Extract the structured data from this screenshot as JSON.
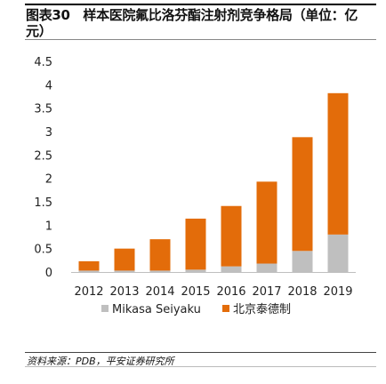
{
  "title": "图表30　样本医院氟比洛芬酯注射剂竞争格局（单位：亿元）",
  "source": "资料来源：PDB，平安证券研究所",
  "chart_data": {
    "type": "bar",
    "stacked": true,
    "categories": [
      "2012",
      "2013",
      "2014",
      "2015",
      "2016",
      "2017",
      "2018",
      "2019"
    ],
    "series": [
      {
        "name": "Mikasa Seiyaku",
        "color": "#BFBFBF",
        "values": [
          0.03,
          0.03,
          0.03,
          0.05,
          0.12,
          0.18,
          0.45,
          0.8
        ]
      },
      {
        "name": "北京泰德制",
        "color": "#E36C0A",
        "values": [
          0.2,
          0.47,
          0.67,
          1.09,
          1.29,
          1.75,
          2.43,
          3.02
        ]
      }
    ],
    "y_ticks": [
      "0",
      "0.5",
      "1",
      "1.5",
      "2",
      "2.5",
      "3",
      "3.5",
      "4",
      "4.5"
    ],
    "ylim": [
      0,
      4.5
    ],
    "legend_position": "bottom",
    "grid": false
  }
}
